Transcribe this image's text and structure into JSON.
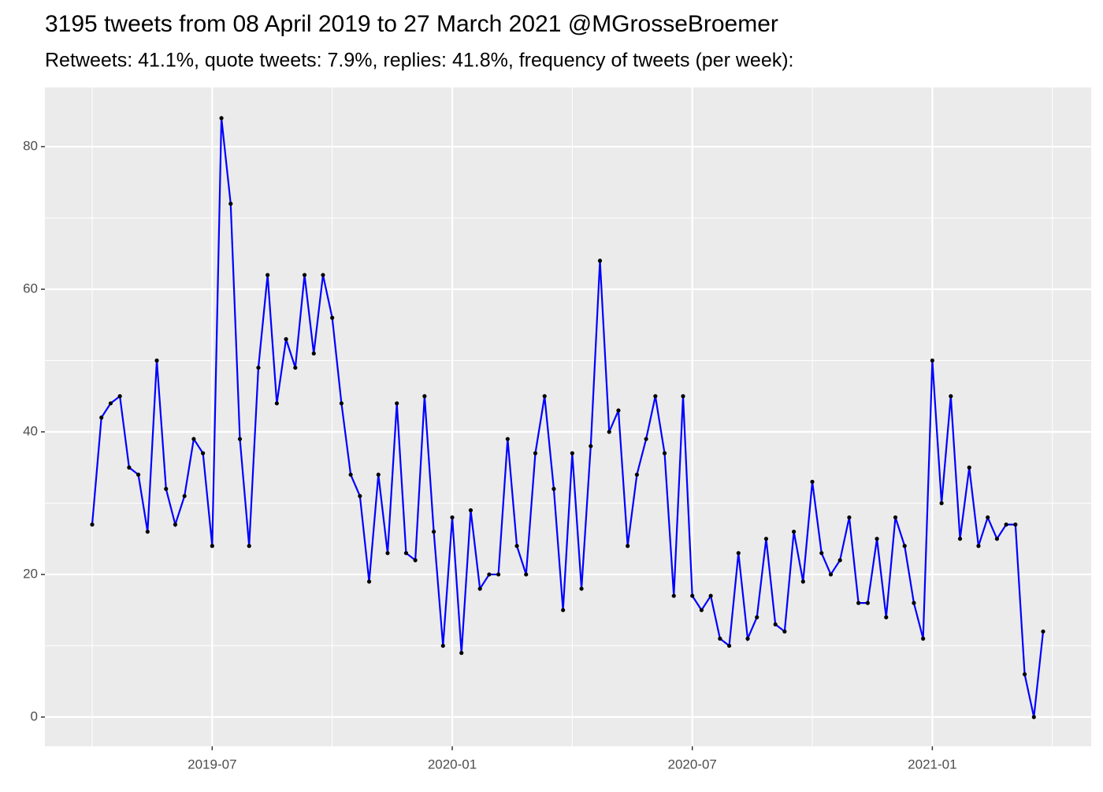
{
  "chart_data": {
    "type": "line",
    "title": "3195 tweets from 08 April 2019 to 27 March 2021 @MGrosseBroemer",
    "subtitle": "Retweets: 41.1%, quote tweets: 7.9%, replies: 41.8%, frequency of tweets (per week):",
    "categories": [
      null,
      null,
      null,
      null,
      null,
      null,
      null,
      null,
      null,
      null,
      null,
      null,
      null,
      "2019-07",
      null,
      null,
      null,
      null,
      null,
      null,
      null,
      null,
      null,
      null,
      null,
      null,
      null,
      null,
      null,
      null,
      null,
      null,
      null,
      null,
      null,
      null,
      null,
      null,
      null,
      "2020-01",
      null,
      null,
      null,
      null,
      null,
      null,
      null,
      null,
      null,
      null,
      null,
      null,
      null,
      null,
      null,
      null,
      null,
      null,
      null,
      null,
      null,
      null,
      null,
      null,
      null,
      "2020-07",
      null,
      null,
      null,
      null,
      null,
      null,
      null,
      null,
      null,
      null,
      null,
      null,
      null,
      null,
      null,
      null,
      null,
      null,
      null,
      null,
      null,
      null,
      null,
      null,
      null,
      "2021-01",
      null,
      null,
      null,
      null,
      null,
      null,
      null,
      null,
      null,
      null,
      null,
      null
    ],
    "series": [
      {
        "name": "tweets per week",
        "color": "#0000ff",
        "values": [
          27,
          42,
          44,
          45,
          35,
          34,
          26,
          50,
          32,
          27,
          31,
          39,
          37,
          24,
          84,
          72,
          39,
          24,
          49,
          62,
          44,
          53,
          49,
          62,
          51,
          62,
          56,
          44,
          34,
          31,
          19,
          34,
          23,
          44,
          23,
          22,
          45,
          26,
          10,
          28,
          9,
          29,
          18,
          20,
          20,
          39,
          24,
          20,
          37,
          45,
          32,
          15,
          37,
          18,
          38,
          64,
          40,
          43,
          24,
          34,
          39,
          45,
          37,
          17,
          45,
          17,
          15,
          17,
          11,
          10,
          23,
          11,
          14,
          25,
          13,
          12,
          26,
          19,
          33,
          23,
          20,
          22,
          28,
          16,
          16,
          25,
          14,
          28,
          24,
          16,
          11,
          50,
          30,
          45,
          25,
          35,
          24,
          28,
          25,
          27,
          27,
          6,
          0,
          12
        ]
      }
    ],
    "point_color": "#000000",
    "ylim": [
      -4.1,
      88.3
    ],
    "yticks": [
      0,
      20,
      40,
      60,
      80
    ],
    "grid": true
  }
}
